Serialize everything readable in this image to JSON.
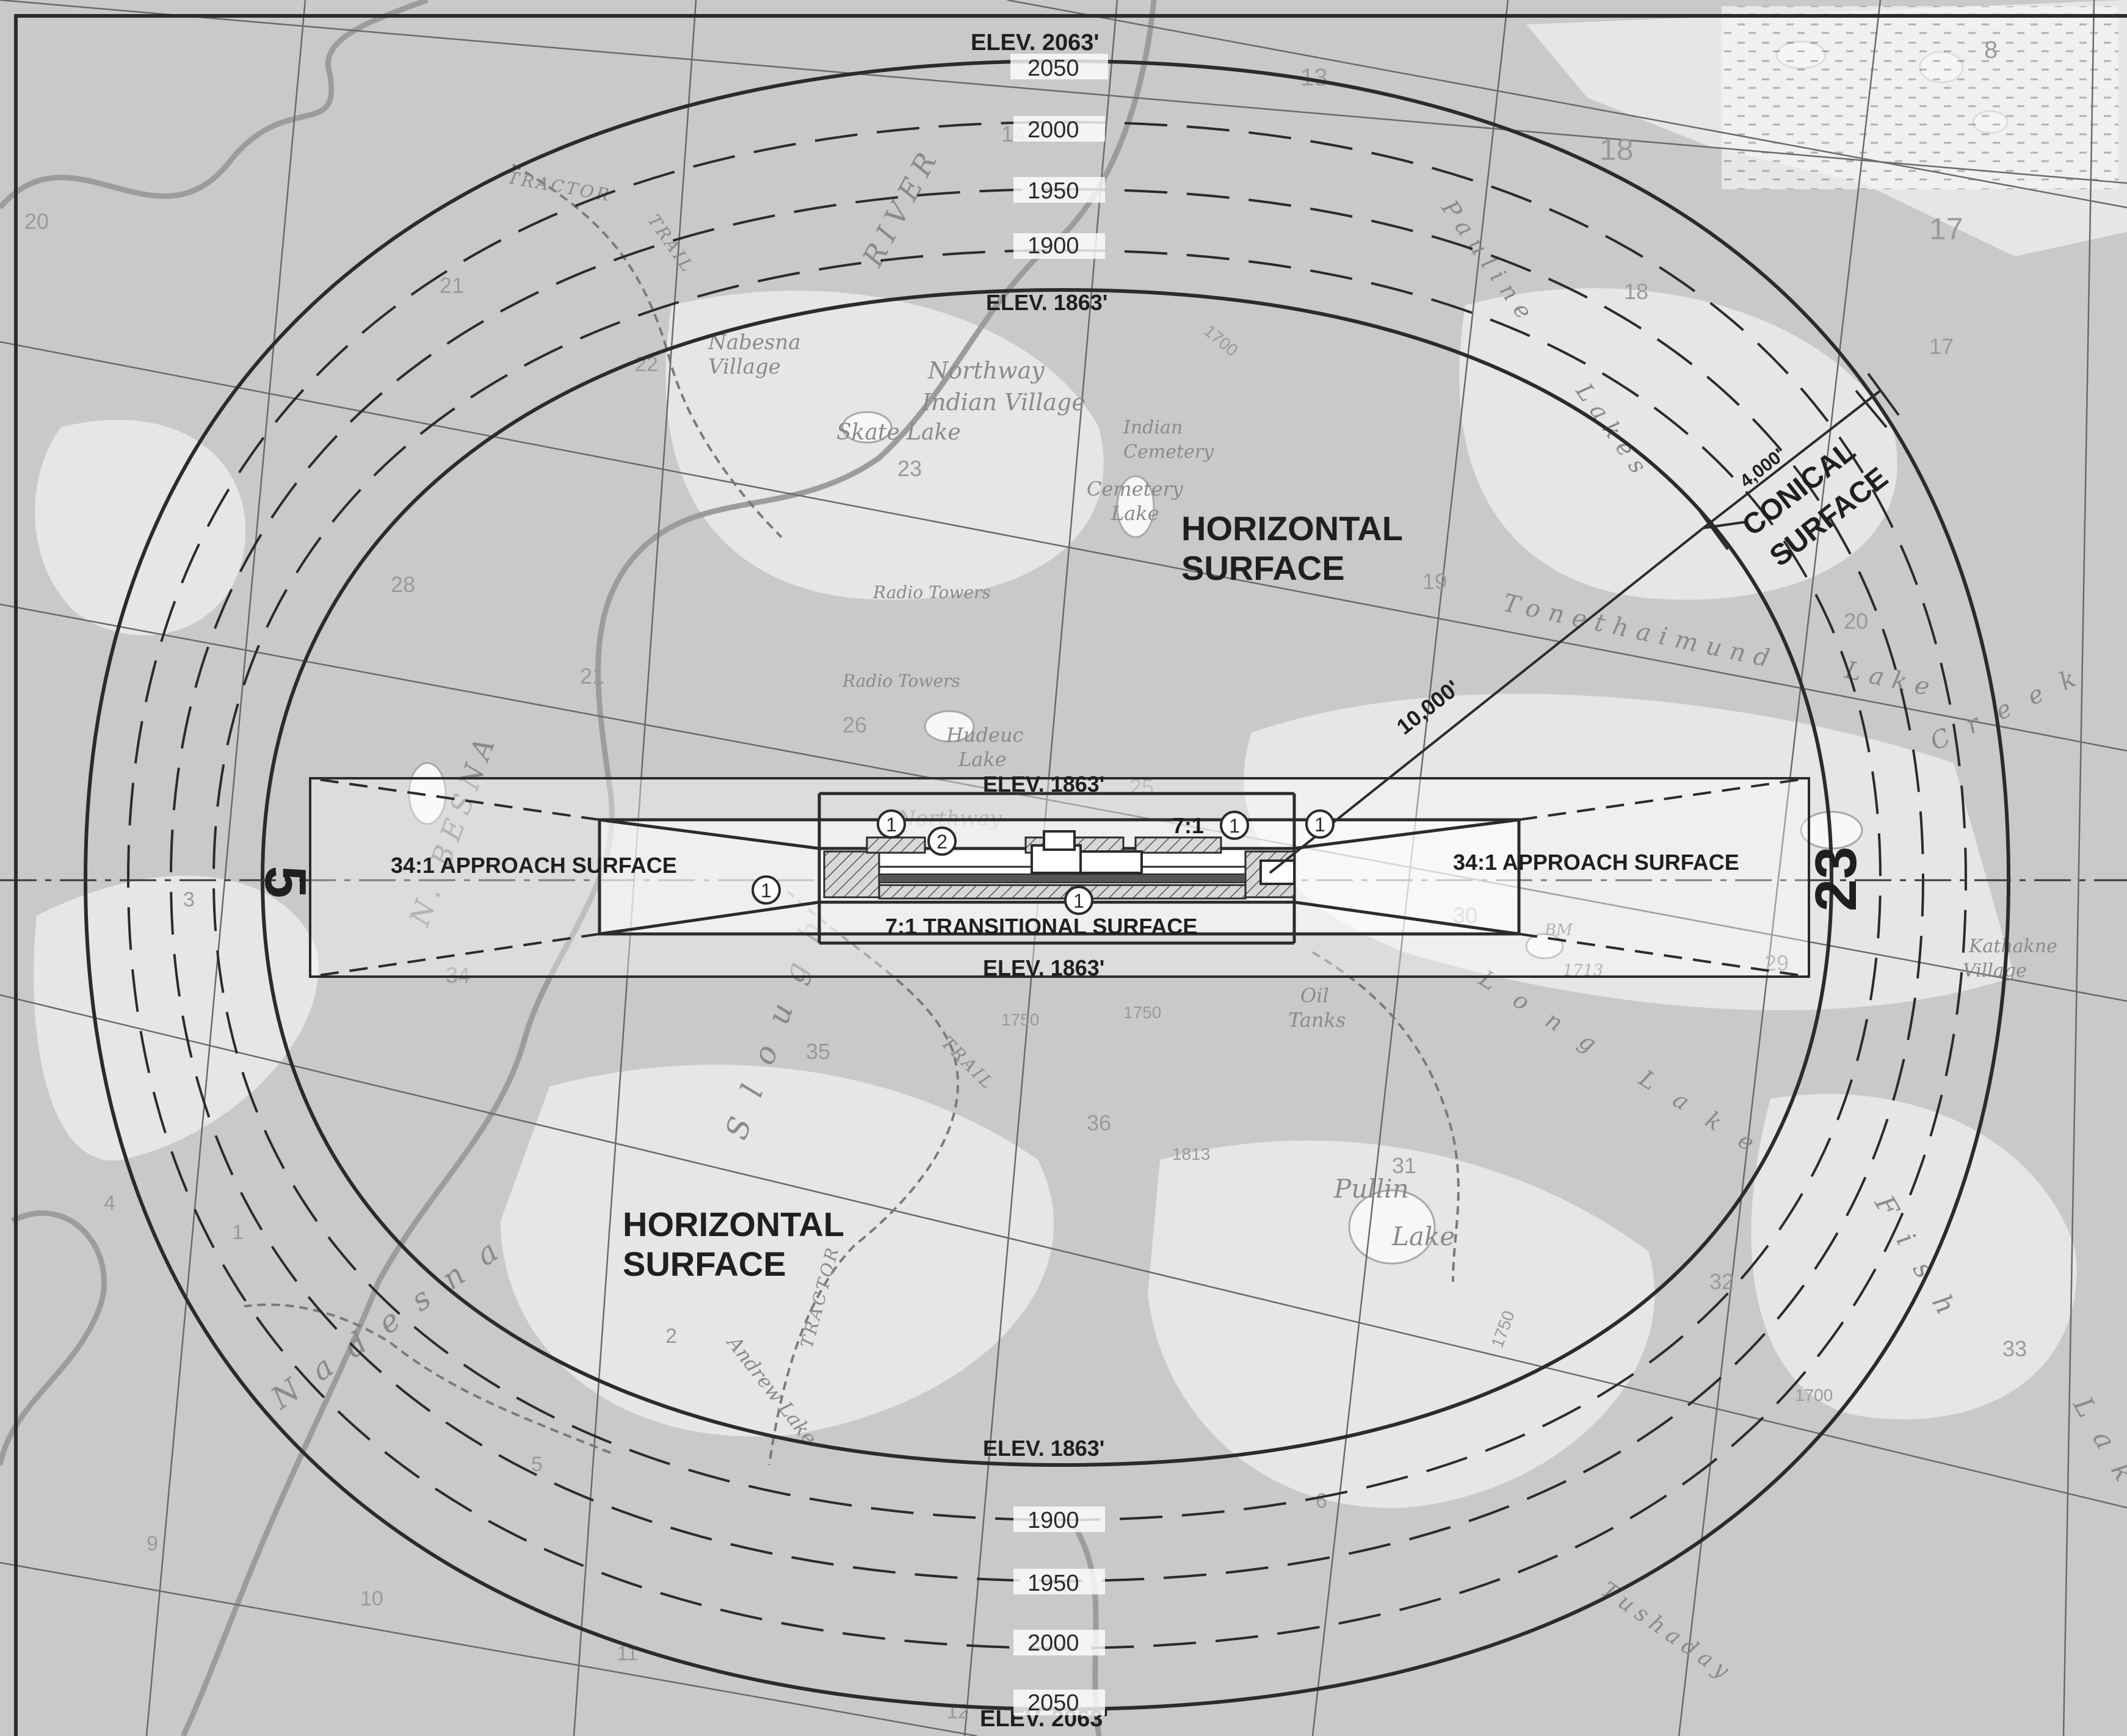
{
  "surfaces": {
    "horizontal_1": [
      "HORIZONTAL",
      "SURFACE"
    ],
    "horizontal_2": [
      "HORIZONTAL",
      "SURFACE"
    ],
    "conical": [
      "CONICAL",
      "SURFACE"
    ],
    "approach_left": "34:1 APPROACH SURFACE",
    "approach_right": "34:1 APPROACH SURFACE",
    "transitional": "7:1 TRANSITIONAL SURFACE",
    "transitional_slope": "7:1"
  },
  "elevations": {
    "outer_top": "ELEV. 2063'",
    "outer_bottom": "ELEV. 2063'",
    "horizontal_top": "ELEV. 1863'",
    "horizontal_bottom": "ELEV. 1863'",
    "primary_top": "ELEV. 1863'",
    "primary_bottom": "ELEV. 1863'"
  },
  "contours": [
    "2050",
    "2000",
    "1950",
    "1900"
  ],
  "dimensions": {
    "radius": "10,000'",
    "conical_width": "4,000'"
  },
  "runway_ends": {
    "left": "5",
    "right": "23"
  },
  "callout_marker": "1",
  "callout_marker_2": "2",
  "map_labels": {
    "nabesna_village": [
      "Nabesna",
      "Village"
    ],
    "northway_indian_village": [
      "Northway",
      "Indian Village"
    ],
    "skate_lake": "Skate Lake",
    "indian_cemetery": [
      "Indian",
      "Cemetery"
    ],
    "cemetery_lake": [
      "Cemetery",
      "Lake"
    ],
    "radio_towers_1": "Radio Towers",
    "radio_towers_2": "Radio Towers",
    "hudeuc_lake": [
      "Hudeuc",
      "Lake"
    ],
    "northway": "Northway",
    "oil_tanks": [
      "Oil",
      "Tanks"
    ],
    "pullin_lake": [
      "Pullin",
      "Lake"
    ],
    "long_lake": "Long Lake",
    "kathakne_village": [
      "Kathakne",
      "Village"
    ],
    "tractor_trail_top": [
      "TRACTOR",
      "TRAIL"
    ],
    "tractor_trail_bottom": [
      "TRAIL",
      "TRACTOR"
    ],
    "andrew_lake": "Andrew Lake",
    "nabesna_river": [
      "RIVER",
      "N. BESNA"
    ],
    "slough": "Slough",
    "nadesna": "Nadesna",
    "pauline_lakes": [
      "Pauline",
      "Lakes"
    ],
    "tonethaimund_lake": [
      "Tonethaimund",
      "Lake"
    ],
    "creek": "Creek",
    "fish": "Fish",
    "lake_right": "Lak",
    "tushaday": "Tushaday",
    "bm": "BM",
    "bm_elev": "1713"
  },
  "section_numbers": [
    "13",
    "14",
    "18",
    "17",
    "8",
    "20",
    "21",
    "22",
    "23",
    "28",
    "21",
    "26",
    "25",
    "30",
    "29",
    "35",
    "36",
    "31",
    "32",
    "33",
    "34",
    "2",
    "1",
    "6",
    "5",
    "4",
    "3",
    "10",
    "11",
    "12",
    "9",
    "28",
    "19",
    "20",
    "17",
    "18",
    "16"
  ],
  "topo_elevations": [
    "1700",
    "1750",
    "1750",
    "1700",
    "1750",
    "1813"
  ]
}
